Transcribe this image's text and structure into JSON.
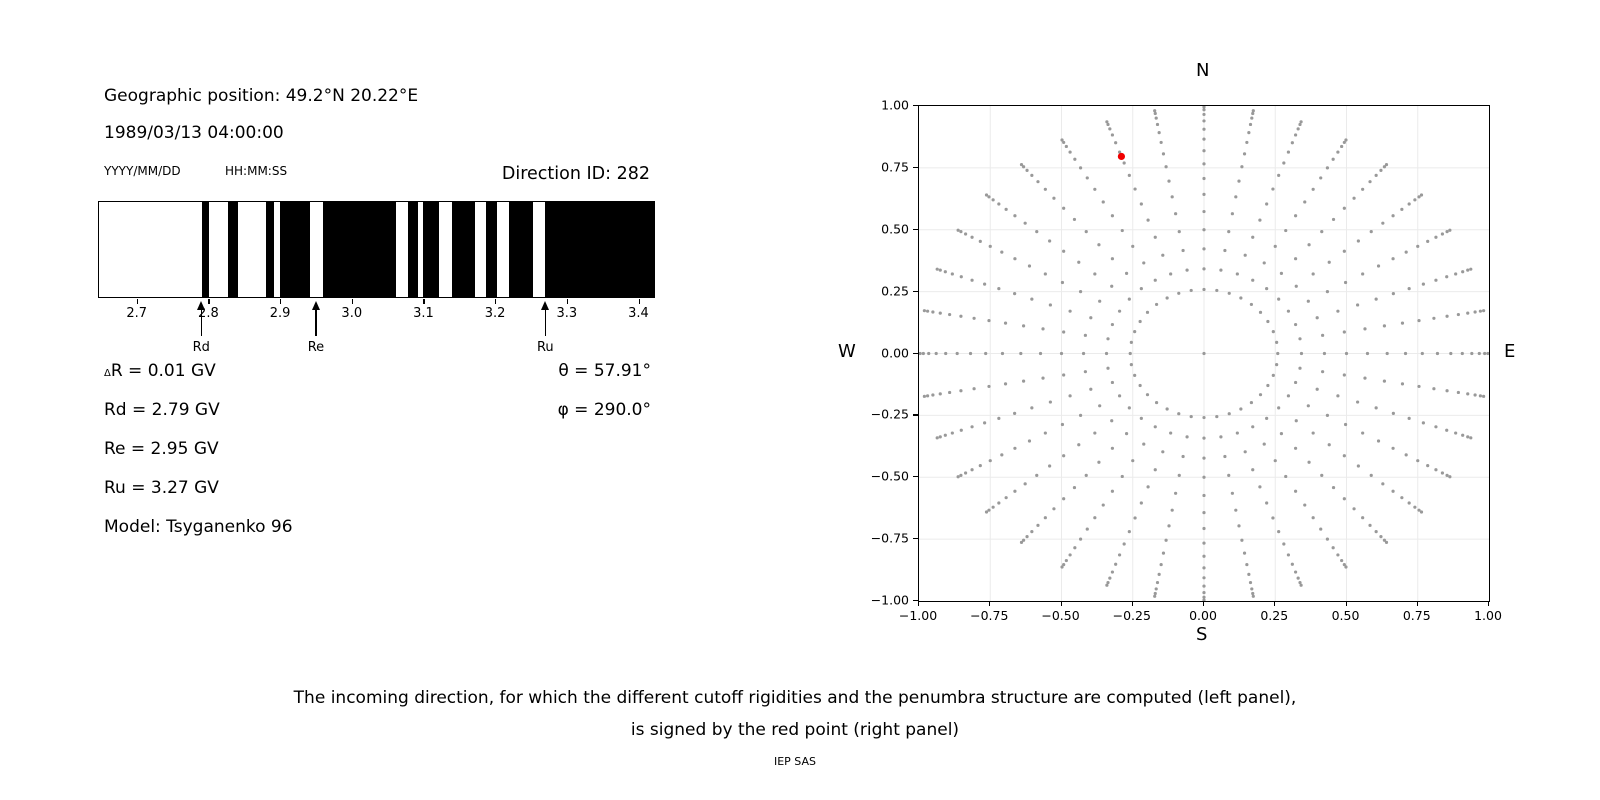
{
  "header": {
    "geo_position": "Geographic position: 49.2°N 20.22°E",
    "datetime": "1989/03/13 04:00:00",
    "date_format_hint": "YYYY/MM/DD",
    "time_format_hint": "HH:MM:SS",
    "direction_id": "Direction ID: 282"
  },
  "info": {
    "delta_symbol": "Δ",
    "delta_rest": "R = 0.01 GV",
    "rd": "Rd = 2.79 GV",
    "re": "Re = 2.95 GV",
    "ru": "Ru = 3.27 GV",
    "model": "Model: Tsyganenko 96",
    "theta": "θ = 57.91°",
    "phi": "φ = 290.0°"
  },
  "compass": {
    "top": "N",
    "bottom": "S",
    "left": "W",
    "right": "E"
  },
  "caption": {
    "line1": "The incoming direction, for which the different cutoff rigidities and the penumbra structure are computed (left panel),",
    "line2": "is signed by the red point (right panel)"
  },
  "footer": "IEP SAS",
  "chart_data": [
    {
      "type": "bar",
      "panel": "penumbra-barcode",
      "xlim": [
        2.646,
        3.423
      ],
      "x_ticks": [
        2.7,
        2.8,
        2.9,
        3.0,
        3.1,
        3.2,
        3.3,
        3.4
      ],
      "x_tick_labels": [
        "2.7",
        "2.8",
        "2.9",
        "3.0",
        "3.1",
        "3.2",
        "3.3",
        "3.4"
      ],
      "black_bands_gv": [
        [
          2.79,
          2.8
        ],
        [
          2.827,
          2.84
        ],
        [
          2.88,
          2.891
        ],
        [
          2.899,
          2.942
        ],
        [
          2.96,
          3.062
        ],
        [
          3.079,
          3.092
        ],
        [
          3.1,
          3.122
        ],
        [
          3.14,
          3.173
        ],
        [
          3.188,
          3.203
        ],
        [
          3.22,
          3.254
        ],
        [
          3.271,
          3.423
        ]
      ],
      "markers": [
        {
          "label": "Rd",
          "gv": 2.79
        },
        {
          "label": "Re",
          "gv": 2.95
        },
        {
          "label": "Ru",
          "gv": 3.27
        }
      ]
    },
    {
      "type": "scatter",
      "panel": "direction-scan",
      "xlim": [
        -1,
        1
      ],
      "ylim": [
        -1,
        1
      ],
      "grid": true,
      "ticks": [
        {
          "v": -1.0,
          "label": "−1.00"
        },
        {
          "v": -0.75,
          "label": "−0.75"
        },
        {
          "v": -0.5,
          "label": "−0.50"
        },
        {
          "v": -0.25,
          "label": "−0.25"
        },
        {
          "v": 0.0,
          "label": "0.00"
        },
        {
          "v": 0.25,
          "label": "0.25"
        },
        {
          "v": 0.5,
          "label": "0.50"
        },
        {
          "v": 0.75,
          "label": "0.75"
        },
        {
          "v": 1.0,
          "label": "1.00"
        }
      ],
      "direction_grid": {
        "azimuth_deg_start": 0,
        "azimuth_deg_step": 10,
        "azimuth_count": 36,
        "zenith_deg_start": 15,
        "zenith_deg_step": 5,
        "zenith_count": 15,
        "center_point": true,
        "mapping": "x = -sin(zenith)*cos(azimuth), y = -sin(zenith)*sin(azimuth)"
      },
      "red_point": {
        "theta_deg": 57.91,
        "phi_deg": 290.0,
        "x": -0.29,
        "y": 0.8
      },
      "colors": {
        "dots": "#999999",
        "red_point": "#f00000",
        "gridline": "#ebebeb"
      }
    }
  ]
}
